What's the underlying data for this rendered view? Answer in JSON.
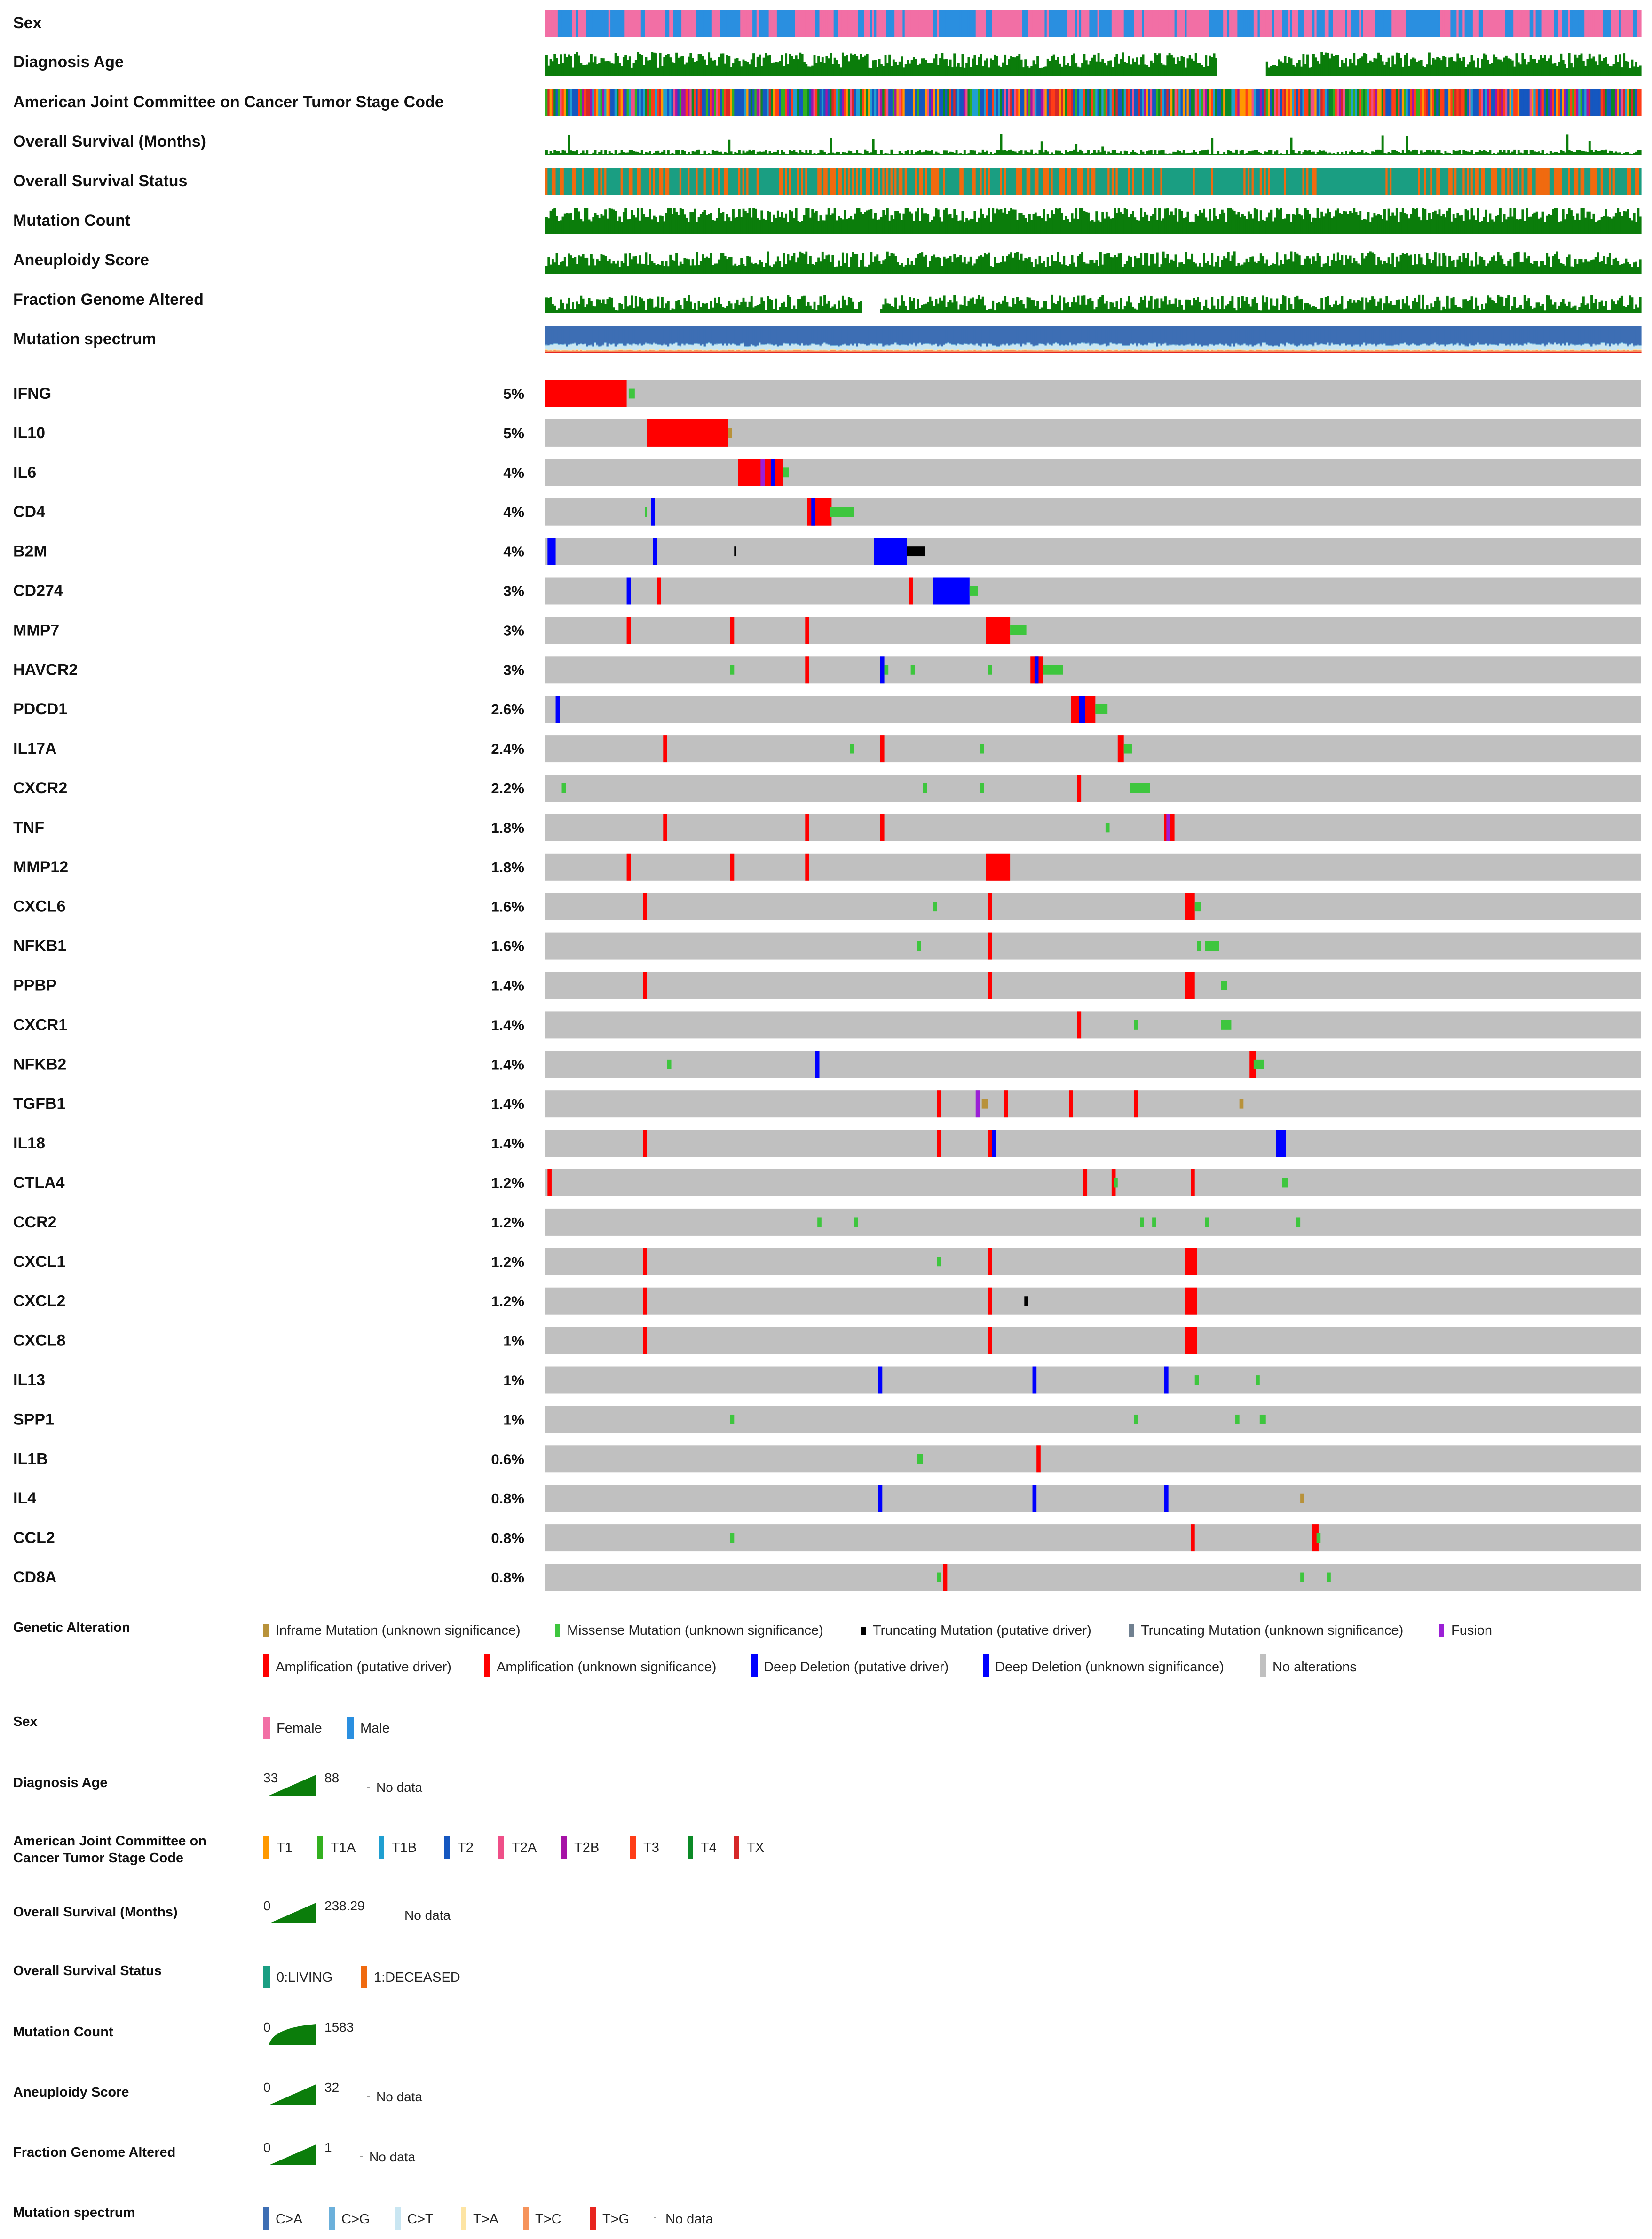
{
  "chart_data": {
    "type": "oncoprint",
    "clinical_tracks": [
      {
        "name": "Sex",
        "kind": "categorical"
      },
      {
        "name": "Diagnosis Age",
        "kind": "numeric"
      },
      {
        "name": "American Joint Committee on Cancer Tumor Stage Code",
        "kind": "categorical"
      },
      {
        "name": "Overall Survival (Months)",
        "kind": "numeric"
      },
      {
        "name": "Overall Survival Status",
        "kind": "categorical"
      },
      {
        "name": "Mutation Count",
        "kind": "numeric"
      },
      {
        "name": "Aneuploidy Score",
        "kind": "numeric"
      },
      {
        "name": "Fraction Genome Altered",
        "kind": "numeric"
      },
      {
        "name": "Mutation spectrum",
        "kind": "stacked"
      }
    ],
    "genes": [
      {
        "name": "IFNG",
        "pct": "5%"
      },
      {
        "name": "IL10",
        "pct": "5%"
      },
      {
        "name": "IL6",
        "pct": "4%"
      },
      {
        "name": "CD4",
        "pct": "4%"
      },
      {
        "name": "B2M",
        "pct": "4%"
      },
      {
        "name": "CD274",
        "pct": "3%"
      },
      {
        "name": "MMP7",
        "pct": "3%"
      },
      {
        "name": "HAVCR2",
        "pct": "3%"
      },
      {
        "name": "PDCD1",
        "pct": "2.6%"
      },
      {
        "name": "IL17A",
        "pct": "2.4%"
      },
      {
        "name": "CXCR2",
        "pct": "2.2%"
      },
      {
        "name": "TNF",
        "pct": "1.8%"
      },
      {
        "name": "MMP12",
        "pct": "1.8%"
      },
      {
        "name": "CXCL6",
        "pct": "1.6%"
      },
      {
        "name": "NFKB1",
        "pct": "1.6%"
      },
      {
        "name": "PPBP",
        "pct": "1.4%"
      },
      {
        "name": "CXCR1",
        "pct": "1.4%"
      },
      {
        "name": "NFKB2",
        "pct": "1.4%"
      },
      {
        "name": "TGFB1",
        "pct": "1.4%"
      },
      {
        "name": "IL18",
        "pct": "1.4%"
      },
      {
        "name": "CTLA4",
        "pct": "1.2%"
      },
      {
        "name": "CCR2",
        "pct": "1.2%"
      },
      {
        "name": "CXCL1",
        "pct": "1.2%"
      },
      {
        "name": "CXCL2",
        "pct": "1.2%"
      },
      {
        "name": "CXCL8",
        "pct": "1%"
      },
      {
        "name": "IL13",
        "pct": "1%"
      },
      {
        "name": "SPP1",
        "pct": "1%"
      },
      {
        "name": "IL1B",
        "pct": "0.6%"
      },
      {
        "name": "IL4",
        "pct": "0.8%"
      },
      {
        "name": "CCL2",
        "pct": "0.8%"
      },
      {
        "name": "CD8A",
        "pct": "0.8%"
      }
    ],
    "legend": {
      "genetic_alteration": {
        "title": "Genetic Alteration",
        "items": [
          {
            "label": "Inframe Mutation (unknown significance)",
            "color": "#b8923a"
          },
          {
            "label": "Missense Mutation (unknown significance)",
            "color": "#3ec63e"
          },
          {
            "label": "Truncating Mutation (putative driver)",
            "color": "#000000"
          },
          {
            "label": "Truncating Mutation (unknown significance)",
            "color": "#708090"
          },
          {
            "label": "Fusion",
            "color": "#9b1fd6"
          },
          {
            "label": "Amplification (putative driver)",
            "color": "#ff0000"
          },
          {
            "label": "Amplification (unknown significance)",
            "color": "#ff0000"
          },
          {
            "label": "Deep Deletion (putative driver)",
            "color": "#0000ff"
          },
          {
            "label": "Deep Deletion (unknown significance)",
            "color": "#0000ff"
          },
          {
            "label": "No alterations",
            "color": "#c0c0c0"
          }
        ]
      },
      "sex": {
        "title": "Sex",
        "items": [
          {
            "label": "Female",
            "color": "#f26fa5"
          },
          {
            "label": "Male",
            "color": "#2a8fe0"
          }
        ]
      },
      "diagnosis_age": {
        "title": "Diagnosis Age",
        "min": "33",
        "max": "88",
        "nodata": "No data"
      },
      "stage": {
        "title_line1": "American Joint Committee on",
        "title_line2": "Cancer Tumor Stage Code",
        "items": [
          {
            "label": "T1",
            "color": "#ff9900"
          },
          {
            "label": "T1A",
            "color": "#33b01f"
          },
          {
            "label": "T1B",
            "color": "#1f9fd1"
          },
          {
            "label": "T2",
            "color": "#1557c0"
          },
          {
            "label": "T2A",
            "color": "#ef4f88"
          },
          {
            "label": "T2B",
            "color": "#a612a6"
          },
          {
            "label": "T3",
            "color": "#ff3d17"
          },
          {
            "label": "T4",
            "color": "#0b8a26"
          },
          {
            "label": "TX",
            "color": "#d62728"
          }
        ]
      },
      "os_months": {
        "title": "Overall Survival (Months)",
        "min": "0",
        "max": "238.29",
        "nodata": "No data"
      },
      "os_status": {
        "title": "Overall Survival Status",
        "items": [
          {
            "label": "0:LIVING",
            "color": "#1a9e82"
          },
          {
            "label": "1:DECEASED",
            "color": "#f06a0f"
          }
        ]
      },
      "mutation_count": {
        "title": "Mutation Count",
        "min": "0",
        "max": "1583"
      },
      "aneuploidy": {
        "title": "Aneuploidy Score",
        "min": "0",
        "max": "32",
        "nodata": "No data"
      },
      "fga": {
        "title": "Fraction Genome Altered",
        "min": "0",
        "max": "1",
        "nodata": "No data"
      },
      "mutation_spectrum": {
        "title": "Mutation spectrum",
        "items": [
          {
            "label": "C>A",
            "color": "#3d6eb4"
          },
          {
            "label": "C>G",
            "color": "#6bb0db"
          },
          {
            "label": "C>T",
            "color": "#c9e6f2"
          },
          {
            "label": "T>A",
            "color": "#fde4a3"
          },
          {
            "label": "T>C",
            "color": "#f6935b"
          },
          {
            "label": "T>G",
            "color": "#e8251f"
          }
        ],
        "nodata": "No data"
      }
    }
  }
}
